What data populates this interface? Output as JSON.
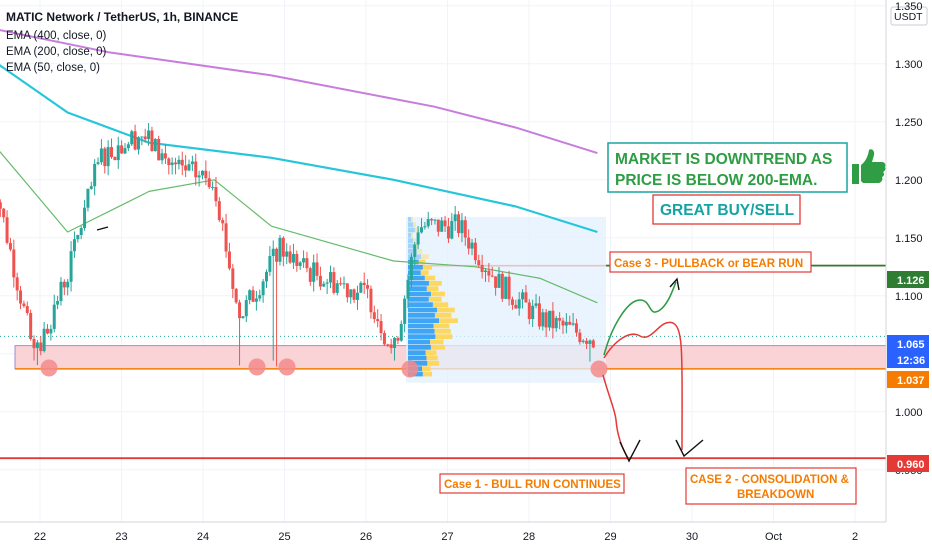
{
  "header": {
    "symbol_line": "MATIC Network / TetherUS, 1h, BINANCE",
    "indicators": [
      "EMA (400, close, 0)",
      "EMA (200, close, 0)",
      "EMA (50, close, 0)"
    ],
    "currency": "USDT"
  },
  "colors": {
    "up_candle": "#26a69a",
    "down_candle": "#ef5350",
    "ema400": "#c77ddb",
    "ema200": "#26c6da",
    "ema50": "#66bb6a",
    "support_zone_fill": "#f9d3d6",
    "support_zone_border": "#8e6fd1",
    "orange_line": "#f57c00",
    "red_line": "#e53935",
    "green_line": "#2e7d32",
    "green_text": "#2e9d44",
    "teal_text": "#15a3a3",
    "volume_profile_blue": "#2196f3",
    "volume_profile_yellow": "#ffd54f"
  },
  "annotations": {
    "downtrend_note": [
      "MARKET IS DOWNTREND AS",
      "PRICE IS BELOW 200-EMA."
    ],
    "buy_sell_note": "GREAT BUY/SELL",
    "case3": "Case 3 - PULLBACK or BEAR RUN",
    "case1": "Case 1 - BULL RUN CONTINUES",
    "case2": [
      "CASE 2 - CONSOLIDATION &",
      "BREAKDOWN"
    ],
    "thumbs_up_icon": "thumbs-up-icon"
  },
  "price_badges": [
    {
      "label": "1.126",
      "color": "#2e7d32"
    },
    {
      "label": "1.065",
      "color": "#2962ff"
    },
    {
      "label": "12:36",
      "color": "#2962ff"
    },
    {
      "label": "1.037",
      "color": "#f57c00"
    },
    {
      "label": "0.960",
      "color": "#e53935"
    }
  ],
  "chart_data": {
    "type": "candlestick",
    "title": "MATIC Network / TetherUS, 1h, BINANCE",
    "y_ticks": [
      "1.350",
      "1.300",
      "1.250",
      "1.200",
      "1.150",
      "1.100",
      "1.050",
      "1.000",
      "0.950"
    ],
    "x_ticks": [
      "22",
      "23",
      "24",
      "25",
      "26",
      "27",
      "28",
      "29",
      "30",
      "Oct",
      "2"
    ],
    "ylim": [
      0.905,
      1.355
    ],
    "horizontal_levels": {
      "resistance_case3": 1.126,
      "current": 1.065,
      "support": 1.037,
      "target": 0.96
    },
    "price_series_approx": [
      {
        "day": 21.6,
        "close": 1.2
      },
      {
        "day": 22.1,
        "close": 1.045
      },
      {
        "day": 22.5,
        "close": 1.12
      },
      {
        "day": 22.9,
        "close": 1.22
      },
      {
        "day": 23.4,
        "close": 1.24
      },
      {
        "day": 23.8,
        "close": 1.21
      },
      {
        "day": 24.3,
        "close": 1.2
      },
      {
        "day": 24.6,
        "close": 1.08
      },
      {
        "day": 25.1,
        "close": 1.14
      },
      {
        "day": 25.5,
        "close": 1.12
      },
      {
        "day": 26.2,
        "close": 1.1
      },
      {
        "day": 26.5,
        "close": 1.05
      },
      {
        "day": 26.8,
        "close": 1.16
      },
      {
        "day": 27.3,
        "close": 1.16
      },
      {
        "day": 27.8,
        "close": 1.11
      },
      {
        "day": 28.3,
        "close": 1.08
      },
      {
        "day": 28.9,
        "close": 1.065
      }
    ],
    "ema400": [
      [
        21.6,
        1.33
      ],
      [
        23.0,
        1.31
      ],
      [
        25.0,
        1.29
      ],
      [
        27.0,
        1.263
      ],
      [
        28.0,
        1.245
      ],
      [
        29.0,
        1.223
      ]
    ],
    "ema200": [
      [
        21.6,
        1.302
      ],
      [
        22.5,
        1.258
      ],
      [
        23.5,
        1.232
      ],
      [
        25.0,
        1.219
      ],
      [
        26.5,
        1.2
      ],
      [
        28.0,
        1.177
      ],
      [
        29.0,
        1.155
      ]
    ],
    "ema50": [
      [
        21.6,
        1.23
      ],
      [
        22.5,
        1.155
      ],
      [
        23.5,
        1.19
      ],
      [
        24.3,
        1.2
      ],
      [
        25.0,
        1.16
      ],
      [
        26.5,
        1.13
      ],
      [
        27.5,
        1.125
      ],
      [
        28.3,
        1.115
      ],
      [
        29.0,
        1.094
      ]
    ]
  }
}
